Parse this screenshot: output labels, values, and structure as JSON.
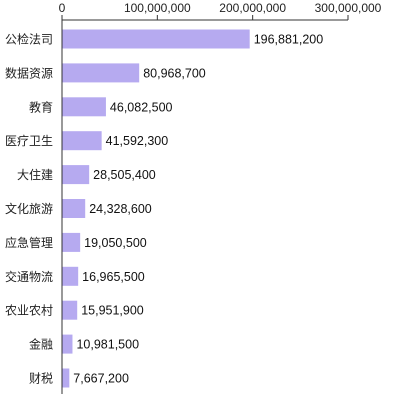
{
  "chart_data": {
    "type": "bar",
    "orientation": "horizontal",
    "title": "",
    "xlabel": "",
    "ylabel": "",
    "xlim": [
      0,
      300000000
    ],
    "x_ticks": [
      0,
      100000000,
      200000000,
      300000000
    ],
    "x_tick_labels": [
      "0",
      "100,000,000",
      "200,000,000",
      "300,000,000"
    ],
    "x_axis_position": "top",
    "grid": false,
    "categories": [
      "公检法司",
      "数据资源",
      "教育",
      "医疗卫生",
      "大住建",
      "文化旅游",
      "应急管理",
      "交通物流",
      "农业农村",
      "金融",
      "财税"
    ],
    "values": [
      196881200,
      80968700,
      46082500,
      41592300,
      28505400,
      24328600,
      19050500,
      16965500,
      15951900,
      10981500,
      7667200
    ],
    "value_labels": [
      "196,881,200",
      "80,968,700",
      "46,082,500",
      "41,592,300",
      "28,505,400",
      "24,328,600",
      "19,050,500",
      "16,965,500",
      "15,951,900",
      "10,981,500",
      "7,667,200"
    ],
    "bar_color": "#b6aaf0",
    "axis_color": "#333333"
  }
}
